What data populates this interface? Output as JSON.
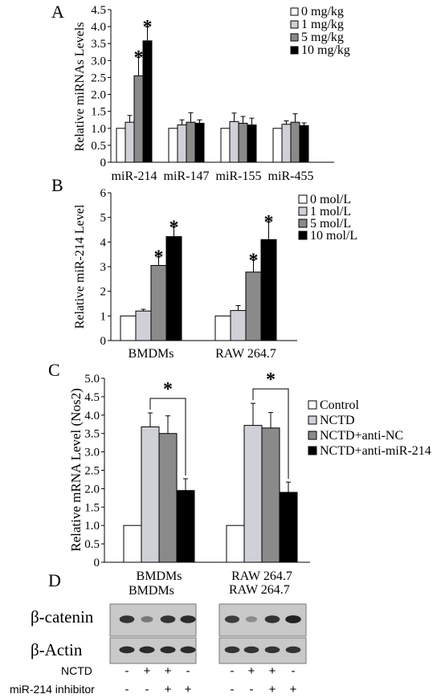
{
  "chart_data": [
    {
      "panel": "A",
      "type": "bar",
      "ylabel": "Relative miRNAs Levels",
      "ylim": [
        0,
        4.5
      ],
      "yticks": [
        "0",
        "0.5",
        "1.0",
        "1.5",
        "2.0",
        "2.5",
        "3.0",
        "3.5",
        "4.0",
        "4.5"
      ],
      "categories": [
        "miR-214",
        "miR-147",
        "miR-155",
        "miR-455"
      ],
      "legend_position": "top-right",
      "series": [
        {
          "name": "0 mg/kg",
          "color": "#ffffff",
          "values": [
            1.0,
            1.0,
            1.0,
            1.0
          ],
          "errors": [
            0,
            0,
            0,
            0
          ]
        },
        {
          "name": "1 mg/kg",
          "color": "#d0d0d8",
          "values": [
            1.18,
            1.1,
            1.2,
            1.12
          ],
          "errors": [
            0.2,
            0.15,
            0.25,
            0.1
          ]
        },
        {
          "name": "5 mg/kg",
          "color": "#8a8a8a",
          "values": [
            2.55,
            1.18,
            1.15,
            1.18
          ],
          "errors": [
            0.55,
            0.28,
            0.2,
            0.25
          ]
        },
        {
          "name": "10 mg/kg",
          "color": "#000000",
          "values": [
            3.58,
            1.15,
            1.1,
            1.08
          ],
          "errors": [
            0.42,
            0.1,
            0.2,
            0.08
          ]
        }
      ],
      "annotations": [
        {
          "text": "*",
          "category": "miR-214",
          "series": "5 mg/kg"
        },
        {
          "text": "*",
          "category": "miR-214",
          "series": "10 mg/kg"
        }
      ]
    },
    {
      "panel": "B",
      "type": "bar",
      "ylabel": "Relative miR-214 Level",
      "ylim": [
        0,
        6
      ],
      "yticks": [
        "0",
        "1",
        "2",
        "3",
        "4",
        "5",
        "6"
      ],
      "categories": [
        "BMDMs",
        "RAW 264.7"
      ],
      "legend_position": "top-right",
      "series": [
        {
          "name": "0 mol/L",
          "color": "#ffffff",
          "values": [
            1.0,
            1.0
          ],
          "errors": [
            0,
            0
          ]
        },
        {
          "name": "1 mol/L",
          "color": "#d0d0d8",
          "values": [
            1.2,
            1.22
          ],
          "errors": [
            0.07,
            0.2
          ]
        },
        {
          "name": "5 mol/L",
          "color": "#8a8a8a",
          "values": [
            3.05,
            2.78
          ],
          "errors": [
            0.35,
            0.5
          ]
        },
        {
          "name": "10 mol/L",
          "color": "#000000",
          "values": [
            4.22,
            4.1
          ],
          "errors": [
            0.4,
            0.72
          ]
        }
      ],
      "annotations": [
        {
          "text": "*",
          "category": "BMDMs",
          "series": "5 mol/L"
        },
        {
          "text": "*",
          "category": "BMDMs",
          "series": "10 mol/L"
        },
        {
          "text": "*",
          "category": "RAW 264.7",
          "series": "5 mol/L"
        },
        {
          "text": "*",
          "category": "RAW 264.7",
          "series": "10 mol/L"
        }
      ]
    },
    {
      "panel": "C",
      "type": "bar",
      "ylabel": "Relative mRNA Level (Nos2)",
      "ylim": [
        0,
        5
      ],
      "yticks": [
        "0",
        "0.5",
        "1.0",
        "1.5",
        "2.0",
        "2.5",
        "3.0",
        "3.5",
        "4.0",
        "4.5",
        "5.0"
      ],
      "categories": [
        "BMDMs",
        "RAW 264.7"
      ],
      "legend_position": "right",
      "series": [
        {
          "name": "Control",
          "color": "#ffffff",
          "values": [
            1.0,
            1.0
          ],
          "errors": [
            0,
            0
          ]
        },
        {
          "name": "NCTD",
          "color": "#d0d0d8",
          "values": [
            3.68,
            3.72
          ],
          "errors": [
            0.38,
            0.6
          ]
        },
        {
          "name": "NCTD+anti-NC",
          "color": "#8a8a8a",
          "values": [
            3.5,
            3.65
          ],
          "errors": [
            0.48,
            0.42
          ]
        },
        {
          "name": "NCTD+anti-miR-214",
          "color": "#000000",
          "values": [
            1.95,
            1.9
          ],
          "errors": [
            0.32,
            0.28
          ]
        }
      ],
      "annotations": [
        {
          "text": "*",
          "type": "bracket",
          "category": "BMDMs",
          "from": "NCTD",
          "to": "NCTD+anti-miR-214"
        },
        {
          "text": "*",
          "type": "bracket",
          "category": "RAW 264.7",
          "from": "NCTD",
          "to": "NCTD+anti-miR-214"
        }
      ]
    }
  ],
  "panel_labels": {
    "a": "A",
    "b": "B",
    "c": "C",
    "d": "D"
  },
  "blot": {
    "groups": [
      "BMDMs",
      "RAW 264.7"
    ],
    "rows": [
      "β-catenin",
      "β-Actin"
    ],
    "treatment_rows": [
      {
        "label": "NCTD",
        "signs": [
          "-",
          "+",
          "+",
          "-"
        ]
      },
      {
        "label": "miR-214 inhibitor",
        "signs": [
          "-",
          "-",
          "+",
          "+"
        ]
      }
    ],
    "band_intensity": {
      "beta_catenin": [
        [
          0.85,
          0.45,
          0.85,
          0.9
        ],
        [
          0.8,
          0.35,
          0.85,
          0.95
        ]
      ],
      "beta_actin": [
        [
          0.9,
          0.9,
          0.9,
          0.9
        ],
        [
          0.85,
          0.85,
          0.85,
          0.85
        ]
      ]
    }
  }
}
